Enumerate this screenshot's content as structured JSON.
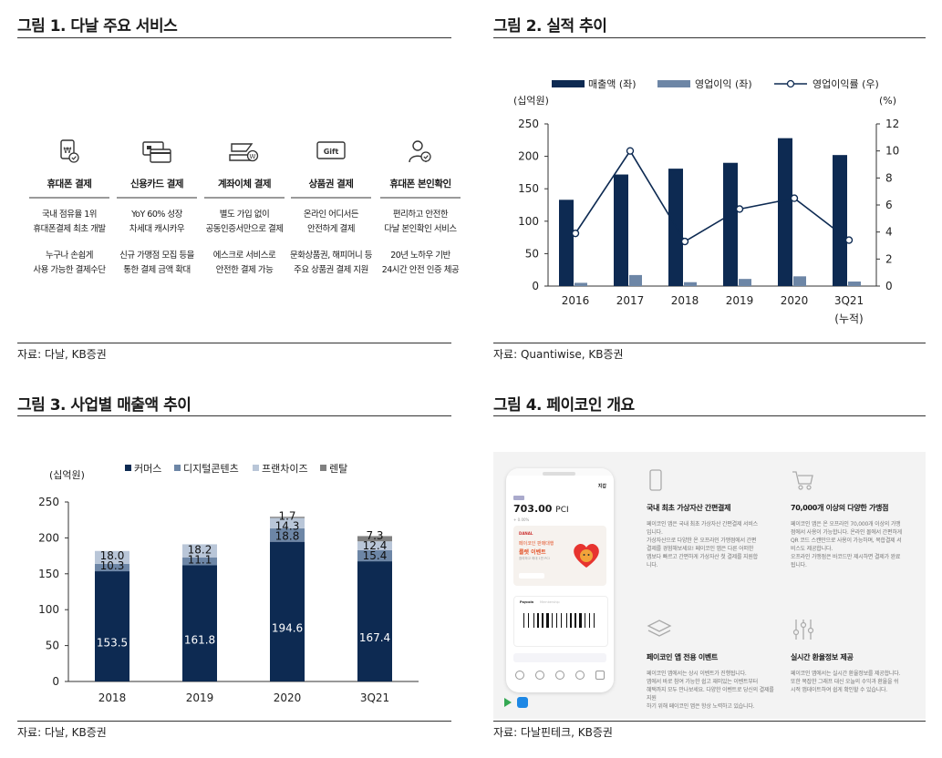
{
  "fig1": {
    "title": "그림 1. 다날 주요 서비스",
    "source": "자료: 다날, KB증권",
    "services": [
      {
        "icon": "won-check-icon",
        "name": "휴대폰 결제",
        "desc1": [
          "국내 점유율 1위",
          "휴대폰결제 최초 개발"
        ],
        "desc2": [
          "누구나 손쉽게",
          "사용 가능한 결제수단"
        ]
      },
      {
        "icon": "credit-card-icon",
        "name": "신용카드 결제",
        "desc1": [
          "YoY 60% 성장",
          "차세대 캐시카우"
        ],
        "desc2": [
          "신규 가맹점 모집 등을",
          "통한 결제 금액 확대"
        ]
      },
      {
        "icon": "bank-transfer-icon",
        "name": "계좌이체 결제",
        "desc1": [
          "별도 가입 없이",
          "공동인증서만으로 결제"
        ],
        "desc2": [
          "에스크로 서비스로",
          "안전한 결제 가능"
        ]
      },
      {
        "icon": "gift-card-icon",
        "name": "상품권 결제",
        "icon_text": "Gift",
        "desc1": [
          "온라인 어디서든",
          "안전하게 결제"
        ],
        "desc2": [
          "문화상품권, 해피머니 등",
          "주요 상품권 결제 지원"
        ]
      },
      {
        "icon": "user-verify-icon",
        "name": "휴대폰 본인확인",
        "desc1": [
          "편리하고 안전한",
          "다날 본인확인 서비스"
        ],
        "desc2": [
          "20년 노하우 기반",
          "24시간 안전 인증 체공"
        ]
      }
    ]
  },
  "fig2": {
    "title": "그림 2. 실적 추이",
    "source": "자료: Quantiwise, KB증권"
  },
  "fig3": {
    "title": "그림 3. 사업별 매출액 추이",
    "source": "자료: 다날, KB증권"
  },
  "fig4": {
    "title": "그림 4. 페이코인 개요",
    "source": "자료: 다날핀테크, KB증권",
    "phone": {
      "header_label": "지갑",
      "balance": "703.00",
      "unit": "PCI",
      "change": "+ 0.00%",
      "banner_brand": "DANAL",
      "banner_text1": "페이코인 판매대행",
      "banner_text2": "룰렛 이벤트",
      "banner_text3": "참여하고 최대 1만 PCI",
      "tab_active": "Paycoin",
      "tab_other": "Membership"
    },
    "features": [
      {
        "icon": "phone-outline-icon",
        "title": "국내 최초 가상자산 간편결제",
        "desc": [
          "페이코인 앱은 국내 최초 가상자산 간편결제 서비스",
          "입니다.",
          "가상자산으로 다양한 온 오프라인 가맹점에서 간편",
          "결제를 경험해보세요! 페이코인 앱은 다른 어떠한",
          "앱보다 빠르고 간편하게 가상자산 첫 결제를 지원합",
          "니다."
        ]
      },
      {
        "icon": "cart-icon",
        "title": "70,000개 이상의 다양한 가맹점",
        "desc": [
          "페이코인 앱은 온 오프라인 70,000개 이상의 가맹",
          "점에서 사용이 가능합니다. 온라인 몰에서 간편하게",
          "QR 코드 스캔만으로 사용이 가능하며, 복합결제 서",
          "비스도 제공합니다.",
          "오프라인 가맹점은 바코드만 제시하면 결제가 완료",
          "됩니다."
        ]
      },
      {
        "icon": "layers-icon",
        "title": "페이코인 앱 전용 이벤트",
        "desc": [
          "페이코인 앱에서는 상시 이벤트가 진행됩니다.",
          "앱에서 바로 참여 가능한 쉽고 재미있는 이벤트부터",
          "혜택까지 모두 만나보세요. 다양한 이벤트로 당신의 결제를 지원",
          "하기 위해 페이코인 앱은 항상 노력하고 있습니다."
        ]
      },
      {
        "icon": "sliders-icon",
        "title": "실시간 환율정보 제공",
        "desc": [
          "페이코인 앱에서는 실시간 환율정보를 제공합니다.",
          "또한 복잡한 그래프 대신 오늘의 수익과 환율을 쉬",
          "시적 앱데이트하여 쉽게 확인할 수 있습니다."
        ]
      }
    ]
  },
  "chart_data": [
    {
      "type": "bar",
      "title": "그림 2. 실적 추이",
      "categories": [
        "2016",
        "2017",
        "2018",
        "2019",
        "2020",
        "3Q21\n(누적)"
      ],
      "category_labels": [
        "2016",
        "2017",
        "2018",
        "2019",
        "2020",
        "3Q21"
      ],
      "category_sublabel": "(누적)",
      "ylabel": "(십억원)",
      "y2label": "(%)",
      "ylim": [
        0,
        250
      ],
      "yticks": [
        0,
        50,
        100,
        150,
        200,
        250
      ],
      "y2lim": [
        0,
        12
      ],
      "y2ticks": [
        0,
        2,
        4,
        6,
        8,
        10,
        12
      ],
      "series": [
        {
          "name": "매출액 (좌)",
          "type": "bar",
          "color": "#0d2a52",
          "values": [
            133,
            172,
            181,
            190,
            228,
            202
          ]
        },
        {
          "name": "영업이익 (좌)",
          "type": "bar",
          "color": "#6d86a6",
          "values": [
            5,
            17,
            6,
            11,
            15,
            7
          ]
        },
        {
          "name": "영업이익률 (우)",
          "type": "line",
          "axis": "right",
          "color": "#0d2a52",
          "values": [
            3.9,
            10.0,
            3.3,
            5.7,
            6.5,
            3.4
          ]
        }
      ],
      "legend": "top"
    },
    {
      "type": "bar",
      "stacked": true,
      "title": "그림 3. 사업별 매출액 추이",
      "categories": [
        "2018",
        "2019",
        "2020",
        "3Q21"
      ],
      "ylabel": "(십억원)",
      "ylim": [
        0,
        250
      ],
      "yticks": [
        0,
        50,
        100,
        150,
        200,
        250
      ],
      "series": [
        {
          "name": "커머스",
          "color": "#0d2a52",
          "values": [
            153.5,
            161.8,
            194.6,
            167.4
          ],
          "labels": [
            "153.5",
            "161.8",
            "194.6",
            "167.4"
          ]
        },
        {
          "name": "디지털콘텐츠",
          "color": "#6d86a6",
          "values": [
            10.3,
            11.1,
            18.8,
            15.4
          ],
          "labels": [
            "10.3",
            "11.1",
            "18.8",
            "15.4"
          ]
        },
        {
          "name": "프랜차이즈",
          "color": "#b9c6d8",
          "values": [
            18.0,
            18.2,
            14.3,
            12.4
          ],
          "labels": [
            "18.0",
            "18.2",
            "14.3",
            "12.4"
          ]
        },
        {
          "name": "렌탈",
          "color": "#808080",
          "values": [
            0,
            0,
            1.7,
            7.3
          ],
          "labels": [
            "",
            "",
            "1.7",
            "7.3"
          ]
        }
      ],
      "legend": "top"
    }
  ]
}
